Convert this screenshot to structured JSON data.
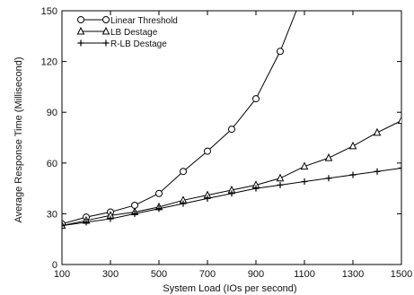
{
  "chart_data": {
    "type": "line",
    "xlabel": "System Load (IOs per second)",
    "ylabel": "Average Response Time (Millisecond)",
    "xlim": [
      100,
      1500
    ],
    "ylim": [
      0,
      150
    ],
    "x_ticks": [
      100,
      300,
      500,
      700,
      900,
      1100,
      1300,
      1500
    ],
    "y_ticks": [
      0,
      30,
      60,
      90,
      120,
      150
    ],
    "grid": false,
    "legend_position": "top-left",
    "series": [
      {
        "name": "Linear Threshold",
        "marker": "circle",
        "x": [
          100,
          200,
          300,
          400,
          500,
          600,
          700,
          800,
          900,
          1000,
          1100
        ],
        "y": [
          24,
          28,
          31,
          35,
          42,
          55,
          67,
          80,
          98,
          126,
          162
        ]
      },
      {
        "name": "LB Destage",
        "marker": "triangle",
        "x": [
          100,
          200,
          300,
          400,
          500,
          600,
          700,
          800,
          900,
          1000,
          1100,
          1200,
          1300,
          1400,
          1500
        ],
        "y": [
          23,
          26,
          29,
          31,
          34,
          38,
          41,
          44,
          47,
          51,
          58,
          63,
          70,
          78,
          85
        ]
      },
      {
        "name": "R-LB Destage",
        "marker": "plus",
        "x": [
          100,
          200,
          300,
          400,
          500,
          600,
          700,
          800,
          900,
          1000,
          1100,
          1200,
          1300,
          1400,
          1500
        ],
        "y": [
          23,
          25,
          27,
          30,
          33,
          36,
          39,
          42,
          45,
          47,
          49,
          51,
          53,
          55,
          57
        ]
      }
    ]
  }
}
